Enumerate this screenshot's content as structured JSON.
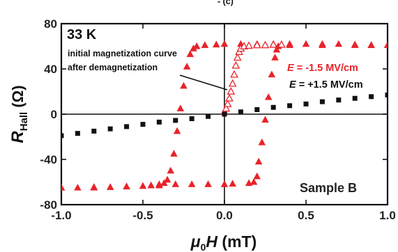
{
  "chart_data": {
    "type": "scatter",
    "xlim": [
      -1.0,
      1.0
    ],
    "ylim": [
      -80,
      80
    ],
    "xticks": [
      "-1.0",
      "-0.5",
      "0.0",
      "0.5",
      "1.0"
    ],
    "yticks": [
      "80",
      "40",
      "0",
      "-40",
      "-80"
    ],
    "xlabel": {
      "sym": "μ",
      "sub": "0",
      "var": "H",
      "unit": " (mT)"
    },
    "ylabel": {
      "sym": "R",
      "sub": "Hall",
      "unit": " (Ω)"
    },
    "zero_lines": true,
    "annotations": {
      "temperature": "33 K",
      "initial_line1": "initial magnetization curve",
      "initial_line2": "after demagnetization",
      "sample": "Sample B"
    },
    "series": [
      {
        "name": "E = -1.5 MV/cm",
        "label_var": "E",
        "label_rest": " = -1.5 MV/cm",
        "color": "#e8232a",
        "marker": "triangle-filled",
        "points": [
          [
            -1.0,
            -65
          ],
          [
            -0.9,
            -65
          ],
          [
            -0.8,
            -65
          ],
          [
            -0.7,
            -64.5
          ],
          [
            -0.6,
            -64
          ],
          [
            -0.5,
            -63.5
          ],
          [
            -0.45,
            -63
          ],
          [
            -0.4,
            -62
          ],
          [
            -0.37,
            -61
          ],
          [
            -0.35,
            -58
          ],
          [
            -0.33,
            -50
          ],
          [
            -0.31,
            -35
          ],
          [
            -0.29,
            -15
          ],
          [
            -0.27,
            5
          ],
          [
            -0.25,
            25
          ],
          [
            -0.23,
            42
          ],
          [
            -0.21,
            53
          ],
          [
            -0.19,
            58
          ],
          [
            -0.17,
            60
          ],
          [
            -0.12,
            61
          ],
          [
            -0.05,
            61.5
          ],
          [
            0.0,
            62
          ],
          [
            0.1,
            62
          ],
          [
            0.2,
            62
          ],
          [
            0.3,
            62
          ],
          [
            0.4,
            62
          ],
          [
            0.5,
            62
          ],
          [
            0.6,
            62
          ],
          [
            0.7,
            62
          ],
          [
            0.8,
            61.5
          ],
          [
            0.9,
            61
          ],
          [
            1.0,
            61
          ],
          [
            0.9,
            61
          ],
          [
            0.8,
            61
          ],
          [
            0.6,
            61
          ],
          [
            0.4,
            61
          ],
          [
            0.33,
            60
          ],
          [
            0.32,
            57
          ],
          [
            0.31,
            50
          ],
          [
            0.29,
            35
          ],
          [
            0.27,
            15
          ],
          [
            0.25,
            -5
          ],
          [
            0.23,
            -25
          ],
          [
            0.21,
            -42
          ],
          [
            0.2,
            -55
          ],
          [
            0.18,
            -60
          ],
          [
            0.15,
            -61
          ],
          [
            0.05,
            -61.5
          ],
          [
            0.0,
            -62
          ],
          [
            -0.1,
            -62
          ],
          [
            -0.2,
            -62
          ],
          [
            -0.3,
            -62
          ],
          [
            -0.4,
            -63
          ],
          [
            -0.6,
            -64
          ],
          [
            -0.8,
            -64.5
          ],
          [
            -1.0,
            -65
          ]
        ]
      },
      {
        "name": "initial magnetization curve after demagnetization",
        "color": "#e8232a",
        "marker": "triangle-open",
        "points": [
          [
            0.0,
            2
          ],
          [
            0.01,
            5
          ],
          [
            0.02,
            9
          ],
          [
            0.03,
            14
          ],
          [
            0.04,
            20
          ],
          [
            0.05,
            27
          ],
          [
            0.06,
            35
          ],
          [
            0.07,
            43
          ],
          [
            0.08,
            50
          ],
          [
            0.09,
            55
          ],
          [
            0.1,
            58
          ],
          [
            0.12,
            60
          ],
          [
            0.15,
            60.5
          ],
          [
            0.2,
            61
          ],
          [
            0.25,
            61
          ],
          [
            0.3,
            61.5
          ],
          [
            0.35,
            61.5
          ]
        ]
      },
      {
        "name": "E = +1.5 MV/cm",
        "label_var": "E",
        "label_rest": " = +1.5 MV/cm",
        "color": "#111111",
        "marker": "square-filled",
        "points": [
          [
            -1.0,
            -19
          ],
          [
            -0.9,
            -17
          ],
          [
            -0.8,
            -15
          ],
          [
            -0.7,
            -13
          ],
          [
            -0.6,
            -11
          ],
          [
            -0.5,
            -9
          ],
          [
            -0.4,
            -7
          ],
          [
            -0.3,
            -5.5
          ],
          [
            -0.2,
            -4
          ],
          [
            -0.1,
            -2
          ],
          [
            0.0,
            0
          ],
          [
            0.1,
            2
          ],
          [
            0.2,
            4
          ],
          [
            0.3,
            6
          ],
          [
            0.4,
            7.5
          ],
          [
            0.5,
            9
          ],
          [
            0.6,
            11
          ],
          [
            0.7,
            12.5
          ],
          [
            0.8,
            14
          ],
          [
            0.9,
            15.5
          ],
          [
            1.0,
            17
          ]
        ]
      }
    ]
  },
  "page_title_fragment": "- (c)"
}
